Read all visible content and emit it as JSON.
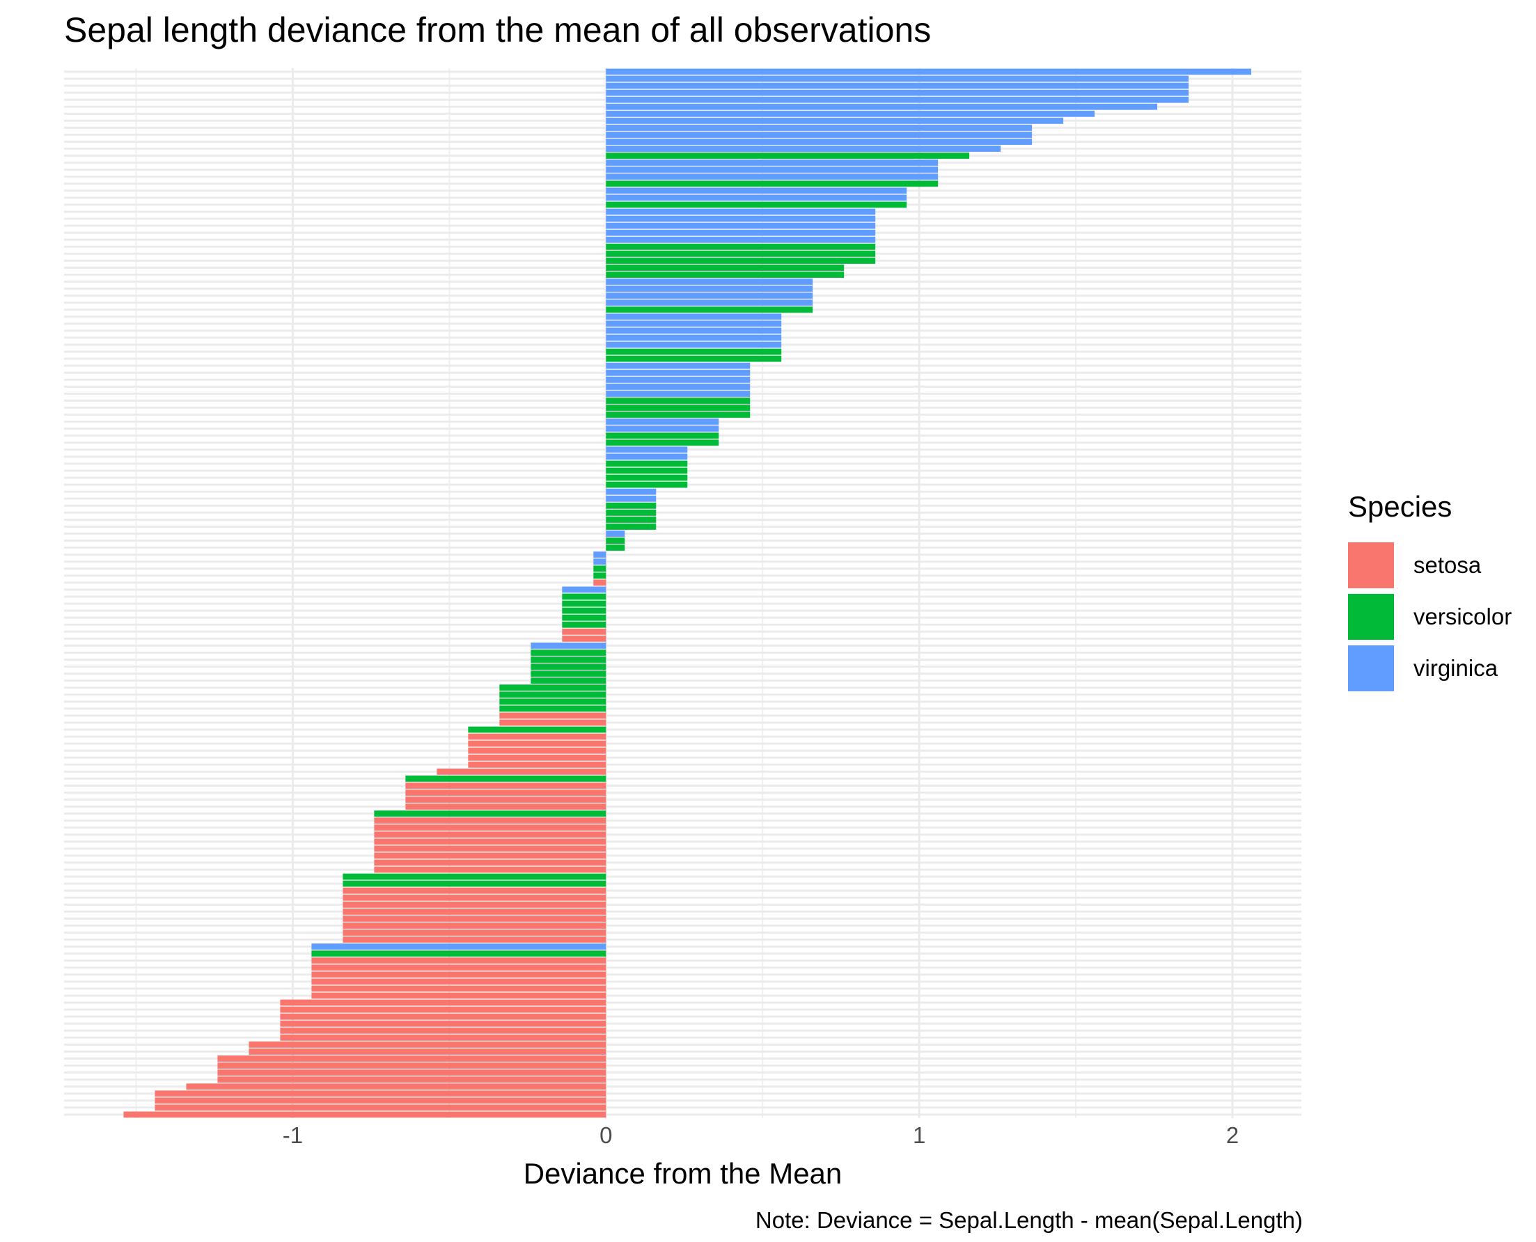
{
  "chart_data": {
    "type": "bar",
    "orientation": "horizontal",
    "title": "Sepal length deviance from the mean of all observations",
    "xlabel": "Deviance from the Mean",
    "ylabel": "",
    "caption": "Note: Deviance = Sepal.Length - mean(Sepal.Length)",
    "xlim": [
      -1.73,
      2.22
    ],
    "x_ticks": [
      "-1",
      "0",
      "1",
      "2"
    ],
    "x_tick_values": [
      -1,
      0,
      1,
      2
    ],
    "grid": true,
    "legend_title": "Species",
    "legend_position": "right",
    "series": [
      {
        "name": "setosa",
        "color": "#F8766D"
      },
      {
        "name": "versicolor",
        "color": "#00BA38"
      },
      {
        "name": "virginica",
        "color": "#619CFF"
      }
    ],
    "observations_sorted_ascending": [
      {
        "species": "setosa",
        "value": -1.54
      },
      {
        "species": "setosa",
        "value": -1.44
      },
      {
        "species": "setosa",
        "value": -1.44
      },
      {
        "species": "setosa",
        "value": -1.44
      },
      {
        "species": "setosa",
        "value": -1.34
      },
      {
        "species": "setosa",
        "value": -1.24
      },
      {
        "species": "setosa",
        "value": -1.24
      },
      {
        "species": "setosa",
        "value": -1.24
      },
      {
        "species": "setosa",
        "value": -1.24
      },
      {
        "species": "setosa",
        "value": -1.14
      },
      {
        "species": "setosa",
        "value": -1.14
      },
      {
        "species": "setosa",
        "value": -1.04
      },
      {
        "species": "setosa",
        "value": -1.04
      },
      {
        "species": "setosa",
        "value": -1.04
      },
      {
        "species": "setosa",
        "value": -1.04
      },
      {
        "species": "setosa",
        "value": -1.04
      },
      {
        "species": "setosa",
        "value": -1.04
      },
      {
        "species": "setosa",
        "value": -0.94
      },
      {
        "species": "setosa",
        "value": -0.94
      },
      {
        "species": "setosa",
        "value": -0.94
      },
      {
        "species": "setosa",
        "value": -0.94
      },
      {
        "species": "setosa",
        "value": -0.94
      },
      {
        "species": "setosa",
        "value": -0.94
      },
      {
        "species": "versicolor",
        "value": -0.94
      },
      {
        "species": "virginica",
        "value": -0.94
      },
      {
        "species": "setosa",
        "value": -0.84
      },
      {
        "species": "setosa",
        "value": -0.84
      },
      {
        "species": "setosa",
        "value": -0.84
      },
      {
        "species": "setosa",
        "value": -0.84
      },
      {
        "species": "setosa",
        "value": -0.84
      },
      {
        "species": "setosa",
        "value": -0.84
      },
      {
        "species": "setosa",
        "value": -0.84
      },
      {
        "species": "setosa",
        "value": -0.84
      },
      {
        "species": "versicolor",
        "value": -0.84
      },
      {
        "species": "versicolor",
        "value": -0.84
      },
      {
        "species": "setosa",
        "value": -0.74
      },
      {
        "species": "setosa",
        "value": -0.74
      },
      {
        "species": "setosa",
        "value": -0.74
      },
      {
        "species": "setosa",
        "value": -0.74
      },
      {
        "species": "setosa",
        "value": -0.74
      },
      {
        "species": "setosa",
        "value": -0.74
      },
      {
        "species": "setosa",
        "value": -0.74
      },
      {
        "species": "setosa",
        "value": -0.74
      },
      {
        "species": "versicolor",
        "value": -0.74
      },
      {
        "species": "setosa",
        "value": -0.64
      },
      {
        "species": "setosa",
        "value": -0.64
      },
      {
        "species": "setosa",
        "value": -0.64
      },
      {
        "species": "setosa",
        "value": -0.64
      },
      {
        "species": "versicolor",
        "value": -0.64
      },
      {
        "species": "setosa",
        "value": -0.54
      },
      {
        "species": "setosa",
        "value": -0.44
      },
      {
        "species": "setosa",
        "value": -0.44
      },
      {
        "species": "setosa",
        "value": -0.44
      },
      {
        "species": "setosa",
        "value": -0.44
      },
      {
        "species": "setosa",
        "value": -0.44
      },
      {
        "species": "versicolor",
        "value": -0.44
      },
      {
        "species": "setosa",
        "value": -0.34
      },
      {
        "species": "setosa",
        "value": -0.34
      },
      {
        "species": "versicolor",
        "value": -0.34
      },
      {
        "species": "versicolor",
        "value": -0.34
      },
      {
        "species": "versicolor",
        "value": -0.34
      },
      {
        "species": "versicolor",
        "value": -0.34
      },
      {
        "species": "versicolor",
        "value": -0.24
      },
      {
        "species": "versicolor",
        "value": -0.24
      },
      {
        "species": "versicolor",
        "value": -0.24
      },
      {
        "species": "versicolor",
        "value": -0.24
      },
      {
        "species": "versicolor",
        "value": -0.24
      },
      {
        "species": "virginica",
        "value": -0.24
      },
      {
        "species": "setosa",
        "value": -0.14
      },
      {
        "species": "setosa",
        "value": -0.14
      },
      {
        "species": "versicolor",
        "value": -0.14
      },
      {
        "species": "versicolor",
        "value": -0.14
      },
      {
        "species": "versicolor",
        "value": -0.14
      },
      {
        "species": "versicolor",
        "value": -0.14
      },
      {
        "species": "versicolor",
        "value": -0.14
      },
      {
        "species": "virginica",
        "value": -0.14
      },
      {
        "species": "setosa",
        "value": -0.04
      },
      {
        "species": "versicolor",
        "value": -0.04
      },
      {
        "species": "versicolor",
        "value": -0.04
      },
      {
        "species": "virginica",
        "value": -0.04
      },
      {
        "species": "virginica",
        "value": -0.04
      },
      {
        "species": "versicolor",
        "value": 0.06
      },
      {
        "species": "versicolor",
        "value": 0.06
      },
      {
        "species": "virginica",
        "value": 0.06
      },
      {
        "species": "versicolor",
        "value": 0.16
      },
      {
        "species": "versicolor",
        "value": 0.16
      },
      {
        "species": "versicolor",
        "value": 0.16
      },
      {
        "species": "versicolor",
        "value": 0.16
      },
      {
        "species": "virginica",
        "value": 0.16
      },
      {
        "species": "virginica",
        "value": 0.16
      },
      {
        "species": "versicolor",
        "value": 0.26
      },
      {
        "species": "versicolor",
        "value": 0.26
      },
      {
        "species": "versicolor",
        "value": 0.26
      },
      {
        "species": "versicolor",
        "value": 0.26
      },
      {
        "species": "virginica",
        "value": 0.26
      },
      {
        "species": "virginica",
        "value": 0.26
      },
      {
        "species": "versicolor",
        "value": 0.36
      },
      {
        "species": "versicolor",
        "value": 0.36
      },
      {
        "species": "virginica",
        "value": 0.36
      },
      {
        "species": "virginica",
        "value": 0.36
      },
      {
        "species": "versicolor",
        "value": 0.46
      },
      {
        "species": "versicolor",
        "value": 0.46
      },
      {
        "species": "versicolor",
        "value": 0.46
      },
      {
        "species": "virginica",
        "value": 0.46
      },
      {
        "species": "virginica",
        "value": 0.46
      },
      {
        "species": "virginica",
        "value": 0.46
      },
      {
        "species": "virginica",
        "value": 0.46
      },
      {
        "species": "virginica",
        "value": 0.46
      },
      {
        "species": "versicolor",
        "value": 0.56
      },
      {
        "species": "versicolor",
        "value": 0.56
      },
      {
        "species": "virginica",
        "value": 0.56
      },
      {
        "species": "virginica",
        "value": 0.56
      },
      {
        "species": "virginica",
        "value": 0.56
      },
      {
        "species": "virginica",
        "value": 0.56
      },
      {
        "species": "virginica",
        "value": 0.56
      },
      {
        "species": "versicolor",
        "value": 0.66
      },
      {
        "species": "virginica",
        "value": 0.66
      },
      {
        "species": "virginica",
        "value": 0.66
      },
      {
        "species": "virginica",
        "value": 0.66
      },
      {
        "species": "virginica",
        "value": 0.66
      },
      {
        "species": "versicolor",
        "value": 0.76
      },
      {
        "species": "versicolor",
        "value": 0.76
      },
      {
        "species": "versicolor",
        "value": 0.86
      },
      {
        "species": "versicolor",
        "value": 0.86
      },
      {
        "species": "versicolor",
        "value": 0.86
      },
      {
        "species": "virginica",
        "value": 0.86
      },
      {
        "species": "virginica",
        "value": 0.86
      },
      {
        "species": "virginica",
        "value": 0.86
      },
      {
        "species": "virginica",
        "value": 0.86
      },
      {
        "species": "virginica",
        "value": 0.86
      },
      {
        "species": "versicolor",
        "value": 0.96
      },
      {
        "species": "virginica",
        "value": 0.96
      },
      {
        "species": "virginica",
        "value": 0.96
      },
      {
        "species": "versicolor",
        "value": 1.06
      },
      {
        "species": "virginica",
        "value": 1.06
      },
      {
        "species": "virginica",
        "value": 1.06
      },
      {
        "species": "virginica",
        "value": 1.06
      },
      {
        "species": "versicolor",
        "value": 1.16
      },
      {
        "species": "virginica",
        "value": 1.26
      },
      {
        "species": "virginica",
        "value": 1.36
      },
      {
        "species": "virginica",
        "value": 1.36
      },
      {
        "species": "virginica",
        "value": 1.36
      },
      {
        "species": "virginica",
        "value": 1.46
      },
      {
        "species": "virginica",
        "value": 1.56
      },
      {
        "species": "virginica",
        "value": 1.76
      },
      {
        "species": "virginica",
        "value": 1.86
      },
      {
        "species": "virginica",
        "value": 1.86
      },
      {
        "species": "virginica",
        "value": 1.86
      },
      {
        "species": "virginica",
        "value": 1.86
      },
      {
        "species": "virginica",
        "value": 2.06
      }
    ]
  }
}
